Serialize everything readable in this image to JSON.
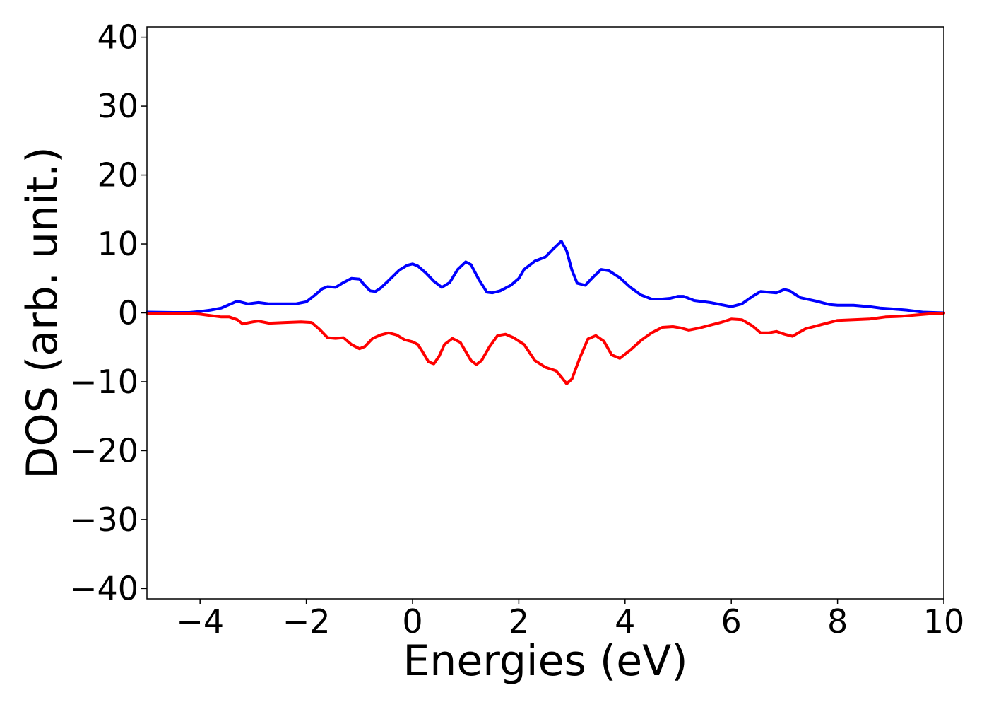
{
  "chart_data": {
    "type": "line",
    "title": "",
    "xlabel": "Energies (eV)",
    "ylabel": "DOS (arb. unit.)",
    "xlim": [
      -5,
      10
    ],
    "ylim": [
      -41.5,
      41.5
    ],
    "xticks": [
      -4,
      -2,
      0,
      2,
      4,
      6,
      8,
      10
    ],
    "yticks": [
      40,
      30,
      20,
      10,
      0,
      -10,
      -20,
      -30,
      -40
    ],
    "xtick_labels": [
      "−4",
      "−2",
      "0",
      "2",
      "4",
      "6",
      "8",
      "10"
    ],
    "ytick_labels": [
      "40",
      "30",
      "20",
      "10",
      "0",
      "−10",
      "−20",
      "−30",
      "−40"
    ],
    "grid": false,
    "colors": {
      "up": "#0000ff",
      "down": "#ff0000",
      "axes": "#000000"
    },
    "series": [
      {
        "x": [
          -5.0,
          -4.5,
          -4.2,
          -4.0,
          -3.8,
          -3.6,
          -3.45,
          -3.3,
          -3.1,
          -2.9,
          -2.7,
          -2.5,
          -2.2,
          -2.0,
          -1.85,
          -1.7,
          -1.6,
          -1.45,
          -1.3,
          -1.15,
          -1.0,
          -0.9,
          -0.8,
          -0.7,
          -0.6,
          -0.45,
          -0.25,
          -0.1,
          0.0,
          0.1,
          0.25,
          0.4,
          0.55,
          0.7,
          0.85,
          1.0,
          1.1,
          1.25,
          1.4,
          1.5,
          1.65,
          1.85,
          2.0,
          2.1,
          2.3,
          2.5,
          2.65,
          2.8,
          2.9,
          3.0,
          3.1,
          3.25,
          3.4,
          3.55,
          3.7,
          3.9,
          4.1,
          4.3,
          4.5,
          4.7,
          4.85,
          5.0,
          5.1,
          5.3,
          5.6,
          5.8,
          6.0,
          6.2,
          6.4,
          6.55,
          6.7,
          6.85,
          7.0,
          7.1,
          7.3,
          7.6,
          7.85,
          8.0,
          8.3,
          8.6,
          8.8,
          9.0,
          9.3,
          9.6,
          10.0
        ],
        "values": [
          0.1,
          0.05,
          0.05,
          0.2,
          0.4,
          0.7,
          1.2,
          1.7,
          1.3,
          1.5,
          1.3,
          1.3,
          1.3,
          1.6,
          2.5,
          3.5,
          3.8,
          3.7,
          4.4,
          5.0,
          4.9,
          4.0,
          3.2,
          3.1,
          3.6,
          4.7,
          6.2,
          6.9,
          7.1,
          6.8,
          5.8,
          4.6,
          3.7,
          4.4,
          6.3,
          7.4,
          7.0,
          4.8,
          3.0,
          2.9,
          3.2,
          4.0,
          5.0,
          6.3,
          7.5,
          8.1,
          9.3,
          10.4,
          9.0,
          6.2,
          4.3,
          4.0,
          5.2,
          6.3,
          6.1,
          5.1,
          3.7,
          2.6,
          2.0,
          2.0,
          2.1,
          2.4,
          2.4,
          1.8,
          1.5,
          1.2,
          0.9,
          1.3,
          2.4,
          3.1,
          3.0,
          2.9,
          3.4,
          3.2,
          2.2,
          1.7,
          1.2,
          1.1,
          1.1,
          0.9,
          0.7,
          0.6,
          0.4,
          0.1,
          0.0
        ]
      },
      {
        "x": [
          -5.0,
          -4.5,
          -4.2,
          -4.0,
          -3.8,
          -3.6,
          -3.45,
          -3.3,
          -3.2,
          -3.0,
          -2.9,
          -2.7,
          -2.4,
          -2.1,
          -1.9,
          -1.75,
          -1.6,
          -1.45,
          -1.3,
          -1.15,
          -1.0,
          -0.9,
          -0.75,
          -0.6,
          -0.45,
          -0.3,
          -0.15,
          0.0,
          0.1,
          0.2,
          0.3,
          0.4,
          0.5,
          0.6,
          0.75,
          0.9,
          1.0,
          1.1,
          1.2,
          1.3,
          1.45,
          1.6,
          1.75,
          1.9,
          2.1,
          2.3,
          2.5,
          2.7,
          2.8,
          2.9,
          3.0,
          3.15,
          3.3,
          3.45,
          3.6,
          3.75,
          3.9,
          4.1,
          4.3,
          4.5,
          4.7,
          4.9,
          5.05,
          5.2,
          5.4,
          5.6,
          5.8,
          6.0,
          6.2,
          6.4,
          6.55,
          6.7,
          6.85,
          7.0,
          7.15,
          7.4,
          7.7,
          8.0,
          8.3,
          8.6,
          8.9,
          9.2,
          9.5,
          9.8,
          10.0
        ],
        "values": [
          -0.05,
          -0.05,
          -0.1,
          -0.2,
          -0.4,
          -0.6,
          -0.6,
          -1.0,
          -1.6,
          -1.3,
          -1.2,
          -1.5,
          -1.4,
          -1.3,
          -1.4,
          -2.4,
          -3.6,
          -3.7,
          -3.6,
          -4.6,
          -5.2,
          -4.9,
          -3.7,
          -3.2,
          -2.9,
          -3.2,
          -3.9,
          -4.2,
          -4.6,
          -5.8,
          -7.1,
          -7.4,
          -6.3,
          -4.6,
          -3.7,
          -4.3,
          -5.6,
          -6.9,
          -7.5,
          -6.9,
          -4.9,
          -3.3,
          -3.1,
          -3.6,
          -4.6,
          -6.9,
          -7.9,
          -8.4,
          -9.3,
          -10.3,
          -9.6,
          -6.5,
          -3.8,
          -3.3,
          -4.1,
          -6.1,
          -6.6,
          -5.4,
          -4.0,
          -2.9,
          -2.1,
          -2.0,
          -2.2,
          -2.5,
          -2.2,
          -1.8,
          -1.4,
          -0.9,
          -1.0,
          -1.9,
          -2.9,
          -2.9,
          -2.7,
          -3.1,
          -3.4,
          -2.3,
          -1.7,
          -1.1,
          -1.0,
          -0.9,
          -0.6,
          -0.5,
          -0.3,
          -0.1,
          -0.05
        ]
      }
    ]
  }
}
